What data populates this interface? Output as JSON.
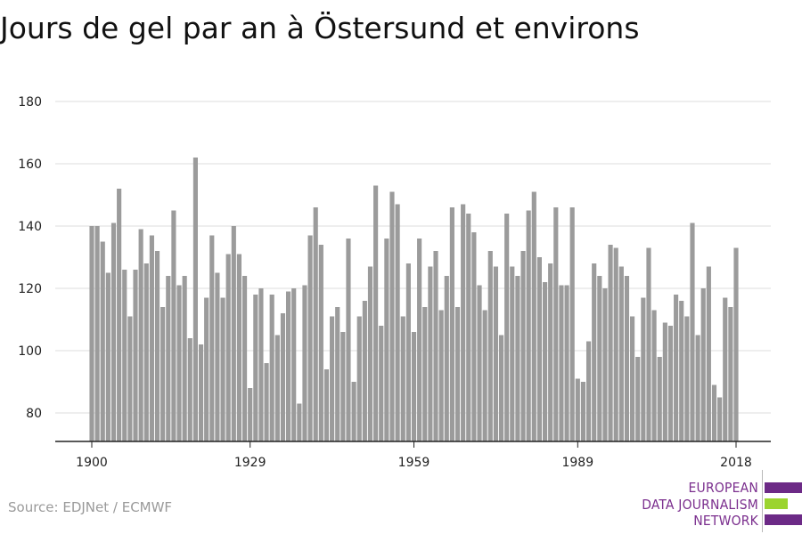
{
  "title": "Jours de gel par an à Östersund et environs",
  "source": "Source: EDJNet / ECMWF",
  "logo": {
    "line1": "EUROPEAN",
    "line2": "DATA JOURNALISM",
    "line3": "NETWORK",
    "colors": {
      "purple": "#6c2a86",
      "green": "#9bd42f"
    }
  },
  "colors": {
    "bar": "#9b9b9b",
    "grid": "#dddddd",
    "axis": "#222222",
    "text": "#222222"
  },
  "chart_data": {
    "type": "bar",
    "title": "Jours de gel par an à Östersund et environs",
    "xlabel": "",
    "ylabel": "",
    "x_ticks": [
      1900,
      1929,
      1959,
      1989,
      2018
    ],
    "y_ticks": [
      80,
      100,
      120,
      140,
      160,
      180
    ],
    "ylim": [
      70,
      183
    ],
    "xlim": [
      1900,
      2018
    ],
    "grid": true,
    "legend": "none",
    "x": [
      1900,
      1901,
      1902,
      1903,
      1904,
      1905,
      1906,
      1907,
      1908,
      1909,
      1910,
      1911,
      1912,
      1913,
      1914,
      1915,
      1916,
      1917,
      1918,
      1919,
      1920,
      1921,
      1922,
      1923,
      1924,
      1925,
      1926,
      1927,
      1928,
      1929,
      1930,
      1931,
      1932,
      1933,
      1934,
      1935,
      1936,
      1937,
      1938,
      1939,
      1940,
      1941,
      1942,
      1943,
      1944,
      1945,
      1946,
      1947,
      1948,
      1949,
      1950,
      1951,
      1952,
      1953,
      1954,
      1955,
      1956,
      1957,
      1958,
      1959,
      1960,
      1961,
      1962,
      1963,
      1964,
      1965,
      1966,
      1967,
      1968,
      1969,
      1970,
      1971,
      1972,
      1973,
      1974,
      1975,
      1976,
      1977,
      1978,
      1979,
      1980,
      1981,
      1982,
      1983,
      1984,
      1985,
      1986,
      1987,
      1988,
      1989,
      1990,
      1991,
      1992,
      1993,
      1994,
      1995,
      1996,
      1997,
      1998,
      1999,
      2000,
      2001,
      2002,
      2003,
      2004,
      2005,
      2006,
      2007,
      2008,
      2009,
      2010,
      2011,
      2012,
      2013,
      2014,
      2015,
      2016,
      2017,
      2018
    ],
    "values": [
      140,
      140,
      135,
      125,
      141,
      152,
      126,
      111,
      126,
      139,
      128,
      137,
      132,
      114,
      124,
      145,
      121,
      124,
      104,
      162,
      102,
      117,
      137,
      125,
      117,
      131,
      140,
      131,
      124,
      88,
      118,
      120,
      96,
      118,
      105,
      112,
      119,
      120,
      83,
      121,
      137,
      146,
      134,
      94,
      111,
      114,
      106,
      136,
      90,
      111,
      116,
      127,
      153,
      108,
      136,
      151,
      147,
      111,
      128,
      106,
      136,
      114,
      127,
      132,
      113,
      124,
      146,
      114,
      147,
      144,
      138,
      121,
      113,
      132,
      127,
      105,
      144,
      127,
      124,
      132,
      145,
      151,
      130,
      122,
      128,
      146,
      121,
      121,
      146,
      91,
      90,
      103,
      128,
      124,
      120,
      134,
      133,
      127,
      124,
      111,
      98,
      117,
      133,
      113,
      98,
      109,
      108,
      118,
      116,
      111,
      141,
      105,
      120,
      127,
      89,
      85,
      117,
      114,
      133
    ]
  }
}
